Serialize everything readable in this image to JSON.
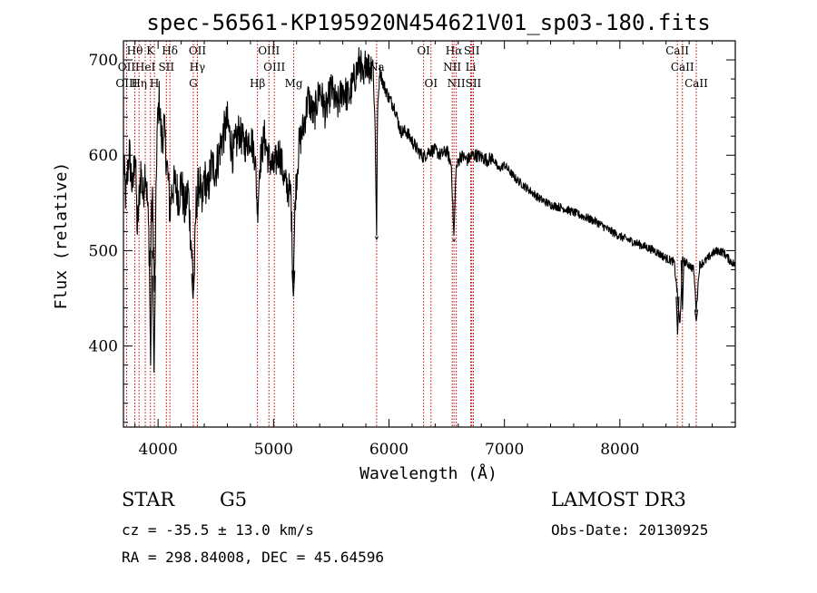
{
  "chart_data": {
    "type": "line",
    "title": "spec-56561-KP195920N454621V01_sp03-180.fits",
    "xlabel": "Wavelength (Å)",
    "ylabel": "Flux (relative)",
    "xlim": [
      3700,
      9000
    ],
    "ylim": [
      315,
      720
    ],
    "xticks": [
      {
        "value": 4000,
        "label": "4000"
      },
      {
        "value": 5000,
        "label": "5000"
      },
      {
        "value": 6000,
        "label": "6000"
      },
      {
        "value": 7000,
        "label": "7000"
      },
      {
        "value": 8000,
        "label": "8000"
      }
    ],
    "yticks": [
      {
        "value": 400,
        "label": "400"
      },
      {
        "value": 500,
        "label": "500"
      },
      {
        "value": 600,
        "label": "600"
      },
      {
        "value": 700,
        "label": "700"
      }
    ],
    "line_color": "#000000",
    "marker_color": "#c00000",
    "spectral_lines": [
      {
        "label": "Hθ",
        "wavelength": 3798,
        "row": 0
      },
      {
        "label": "K",
        "wavelength": 3934,
        "row": 0
      },
      {
        "label": "Hδ",
        "wavelength": 4102,
        "row": 0
      },
      {
        "label": "OII",
        "wavelength": 4341,
        "row": 0
      },
      {
        "label": "OIII",
        "wavelength": 4960,
        "row": 0
      },
      {
        "label": "Na",
        "wavelength": 5893,
        "row": 1
      },
      {
        "label": "OI",
        "wavelength": 6300,
        "row": 0
      },
      {
        "label": "Hα",
        "wavelength": 6563,
        "row": 0
      },
      {
        "label": "SII",
        "wavelength": 6717,
        "row": 0
      },
      {
        "label": "CaII",
        "wavelength": 8498,
        "row": 0
      },
      {
        "label": "OII",
        "wavelength": 3727,
        "row": 1
      },
      {
        "label": "HeI",
        "wavelength": 3889,
        "row": 1
      },
      {
        "label": "SII",
        "wavelength": 4072,
        "row": 1
      },
      {
        "label": "Hγ",
        "wavelength": 4340,
        "row": 1
      },
      {
        "label": "OIII",
        "wavelength": 5007,
        "row": 1
      },
      {
        "label": "NII",
        "wavelength": 6548,
        "row": 1
      },
      {
        "label": "Li",
        "wavelength": 6708,
        "row": 1
      },
      {
        "label": "CaII",
        "wavelength": 8542,
        "row": 1
      },
      {
        "label": "OIII",
        "wavelength": 3727,
        "row": 2
      },
      {
        "label": "Hη",
        "wavelength": 3835,
        "row": 2
      },
      {
        "label": "H",
        "wavelength": 3968,
        "row": 2
      },
      {
        "label": "G",
        "wavelength": 4305,
        "row": 2
      },
      {
        "label": "Hβ",
        "wavelength": 4861,
        "row": 2
      },
      {
        "label": "Mg",
        "wavelength": 5175,
        "row": 2
      },
      {
        "label": "OI",
        "wavelength": 6364,
        "row": 2
      },
      {
        "label": "NII",
        "wavelength": 6583,
        "row": 2
      },
      {
        "label": "SII",
        "wavelength": 6731,
        "row": 2
      },
      {
        "label": "CaII",
        "wavelength": 8662,
        "row": 2
      }
    ],
    "anchors": [
      [
        3700,
        595
      ],
      [
        3720,
        555
      ],
      [
        3750,
        605
      ],
      [
        3780,
        560
      ],
      [
        3800,
        610
      ],
      [
        3820,
        520
      ],
      [
        3850,
        585
      ],
      [
        3870,
        555
      ],
      [
        3890,
        590
      ],
      [
        3910,
        545
      ],
      [
        3930,
        480
      ],
      [
        3950,
        560
      ],
      [
        3970,
        445
      ],
      [
        3990,
        620
      ],
      [
        4010,
        660
      ],
      [
        4030,
        615
      ],
      [
        4050,
        630
      ],
      [
        4070,
        600
      ],
      [
        4090,
        570
      ],
      [
        4102,
        540
      ],
      [
        4120,
        565
      ],
      [
        4150,
        570
      ],
      [
        4180,
        555
      ],
      [
        4200,
        575
      ],
      [
        4230,
        540
      ],
      [
        4260,
        565
      ],
      [
        4290,
        500
      ],
      [
        4310,
        460
      ],
      [
        4330,
        550
      ],
      [
        4360,
        575
      ],
      [
        4380,
        540
      ],
      [
        4400,
        580
      ],
      [
        4430,
        560
      ],
      [
        4460,
        590
      ],
      [
        4500,
        585
      ],
      [
        4550,
        615
      ],
      [
        4600,
        635
      ],
      [
        4650,
        600
      ],
      [
        4700,
        625
      ],
      [
        4750,
        610
      ],
      [
        4800,
        620
      ],
      [
        4840,
        600
      ],
      [
        4861,
        540
      ],
      [
        4880,
        590
      ],
      [
        4920,
        620
      ],
      [
        4950,
        600
      ],
      [
        5000,
        585
      ],
      [
        5050,
        605
      ],
      [
        5100,
        570
      ],
      [
        5150,
        560
      ],
      [
        5170,
        470
      ],
      [
        5190,
        560
      ],
      [
        5220,
        610
      ],
      [
        5260,
        630
      ],
      [
        5300,
        660
      ],
      [
        5350,
        640
      ],
      [
        5400,
        670
      ],
      [
        5450,
        645
      ],
      [
        5500,
        670
      ],
      [
        5550,
        650
      ],
      [
        5600,
        670
      ],
      [
        5650,
        660
      ],
      [
        5700,
        680
      ],
      [
        5750,
        700
      ],
      [
        5780,
        670
      ],
      [
        5800,
        705
      ],
      [
        5830,
        690
      ],
      [
        5860,
        700
      ],
      [
        5880,
        630
      ],
      [
        5893,
        515
      ],
      [
        5900,
        640
      ],
      [
        5920,
        690
      ],
      [
        5950,
        675
      ],
      [
        6000,
        660
      ],
      [
        6050,
        650
      ],
      [
        6100,
        625
      ],
      [
        6150,
        625
      ],
      [
        6200,
        615
      ],
      [
        6250,
        605
      ],
      [
        6300,
        598
      ],
      [
        6350,
        605
      ],
      [
        6400,
        605
      ],
      [
        6450,
        600
      ],
      [
        6500,
        605
      ],
      [
        6540,
        590
      ],
      [
        6563,
        512
      ],
      [
        6580,
        585
      ],
      [
        6620,
        600
      ],
      [
        6680,
        595
      ],
      [
        6720,
        600
      ],
      [
        6760,
        600
      ],
      [
        6800,
        598
      ],
      [
        6850,
        595
      ],
      [
        6900,
        597
      ],
      [
        6950,
        585
      ],
      [
        7000,
        590
      ],
      [
        7100,
        575
      ],
      [
        7200,
        565
      ],
      [
        7300,
        555
      ],
      [
        7400,
        548
      ],
      [
        7500,
        545
      ],
      [
        7600,
        540
      ],
      [
        7700,
        535
      ],
      [
        7800,
        530
      ],
      [
        7900,
        522
      ],
      [
        8000,
        515
      ],
      [
        8100,
        510
      ],
      [
        8200,
        505
      ],
      [
        8300,
        500
      ],
      [
        8400,
        492
      ],
      [
        8470,
        488
      ],
      [
        8498,
        455
      ],
      [
        8520,
        420
      ],
      [
        8542,
        490
      ],
      [
        8600,
        485
      ],
      [
        8640,
        480
      ],
      [
        8662,
        438
      ],
      [
        8690,
        485
      ],
      [
        8750,
        490
      ],
      [
        8800,
        497
      ],
      [
        8850,
        500
      ],
      [
        8900,
        498
      ],
      [
        8950,
        490
      ],
      [
        9000,
        485
      ]
    ]
  },
  "info": {
    "object_class": "STAR",
    "subclass": "G5",
    "redshift": "cz = -35.5 ± 13.0 km/s",
    "coords": "RA = 298.84008, DEC =  45.64596",
    "survey": "LAMOST DR3",
    "obs_date": "Obs-Date: 20130925"
  }
}
